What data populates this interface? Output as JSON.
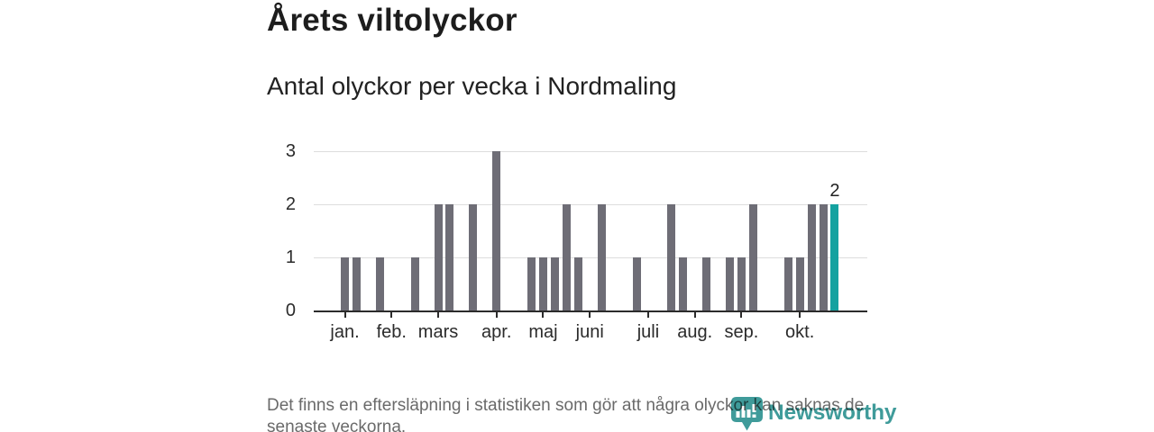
{
  "header": {
    "title": "Årets viltolyckor",
    "subtitle": "Antal olyckor per vecka i Nordmaling"
  },
  "footer": {
    "lines": [
      "Det finns en eftersläpning i statistiken som gör att några olyckor kan saknas de",
      "senaste veckorna."
    ]
  },
  "branding": {
    "logo_text": "Newsworthy",
    "logo_icon": "newsworthy-barchart-pin-icon",
    "logo_color": "#3f9b9a"
  },
  "chart_data": {
    "type": "bar",
    "title": "Årets viltolyckor",
    "subtitle": "Antal olyckor per vecka i Nordmaling",
    "x_unit": "week",
    "x_range_note": "43 weekly bars, January through late October",
    "values": [
      1,
      1,
      0,
      1,
      0,
      0,
      1,
      0,
      2,
      2,
      0,
      2,
      0,
      3,
      0,
      0,
      1,
      1,
      1,
      2,
      1,
      0,
      2,
      0,
      0,
      1,
      0,
      0,
      2,
      1,
      0,
      1,
      0,
      1,
      1,
      2,
      0,
      0,
      1,
      1,
      2,
      2,
      2
    ],
    "month_ticks": [
      {
        "label": "jan.",
        "week_index": 0
      },
      {
        "label": "feb.",
        "week_index": 4
      },
      {
        "label": "mars",
        "week_index": 8
      },
      {
        "label": "apr.",
        "week_index": 13
      },
      {
        "label": "maj",
        "week_index": 17
      },
      {
        "label": "juni",
        "week_index": 21
      },
      {
        "label": "juli",
        "week_index": 26
      },
      {
        "label": "aug.",
        "week_index": 30
      },
      {
        "label": "sep.",
        "week_index": 34
      },
      {
        "label": "okt.",
        "week_index": 39
      }
    ],
    "yticks": [
      0,
      1,
      2,
      3
    ],
    "ylim": [
      0,
      3
    ],
    "grid": "horizontal",
    "legend": "none",
    "last_bar": {
      "value": 2,
      "label": "2",
      "highlighted": true
    },
    "colors": {
      "bar": "#6e6d76",
      "highlight": "#14a2a0",
      "axis": "#2b2b2b",
      "gridline": "#dddddd",
      "label_text": "#2b2b2b",
      "footer_text": "#6a6a6a",
      "logo": "#3f9b9a"
    }
  }
}
